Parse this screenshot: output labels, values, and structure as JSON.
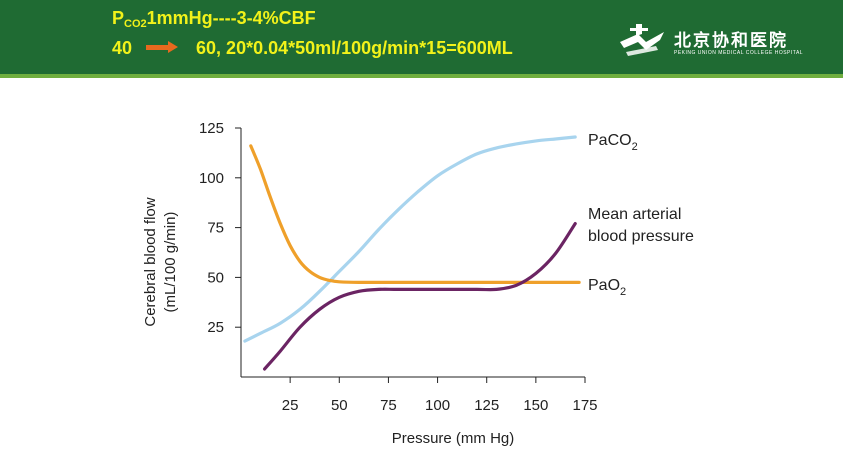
{
  "header": {
    "line1_p": "P",
    "line1_sub": "CO2",
    "line1_rest": "1mmHg----3-4%CBF",
    "line2_start": "40",
    "line2_rest": "60, 20*0.04*50ml/100g/min*15=600ML",
    "arrow_icon": "right-arrow-icon",
    "logo_cn": "北京协和医院",
    "logo_en": "PEKING UNION MEDICAL COLLEGE HOSPITAL"
  },
  "colors": {
    "header_bg": "#1f6b33",
    "header_text": "#f2f21a",
    "arrow": "#e8691e",
    "paco2": "#a8d4ee",
    "pao2": "#efa02a",
    "map": "#6b2463"
  },
  "chart_data": {
    "type": "line",
    "title": "",
    "xlabel": "Pressure (mm Hg)",
    "ylabel_line1": "Cerebral blood flow",
    "ylabel_line2": "(mL/100 g/min)",
    "xlim": [
      0,
      175
    ],
    "ylim": [
      0,
      125
    ],
    "xticks": [
      25,
      50,
      75,
      100,
      125,
      150,
      175
    ],
    "yticks": [
      25,
      50,
      75,
      100,
      125
    ],
    "grid": false,
    "series": [
      {
        "name": "PaCO2",
        "label_base": "PaCO",
        "label_sub": "2",
        "color": "#a8d4ee",
        "points": [
          [
            2,
            18
          ],
          [
            10,
            22
          ],
          [
            20,
            27
          ],
          [
            30,
            34
          ],
          [
            40,
            43
          ],
          [
            50,
            53
          ],
          [
            60,
            63
          ],
          [
            70,
            74
          ],
          [
            80,
            84
          ],
          [
            90,
            93
          ],
          [
            100,
            101
          ],
          [
            110,
            107
          ],
          [
            120,
            112
          ],
          [
            130,
            115
          ],
          [
            140,
            117
          ],
          [
            150,
            118.5
          ],
          [
            160,
            119.5
          ],
          [
            170,
            120.5
          ]
        ]
      },
      {
        "name": "PaO2",
        "label_base": "PaO",
        "label_sub": "2",
        "color": "#efa02a",
        "points": [
          [
            5,
            116
          ],
          [
            10,
            104
          ],
          [
            15,
            90
          ],
          [
            20,
            77
          ],
          [
            25,
            66
          ],
          [
            30,
            58
          ],
          [
            35,
            53
          ],
          [
            40,
            50
          ],
          [
            45,
            48.5
          ],
          [
            50,
            47.8
          ],
          [
            60,
            47.5
          ],
          [
            80,
            47.5
          ],
          [
            120,
            47.5
          ],
          [
            150,
            47.5
          ],
          [
            172,
            47.5
          ]
        ]
      },
      {
        "name": "Mean arterial blood pressure",
        "label_line1": "Mean arterial",
        "label_line2": "blood pressure",
        "color": "#6b2463",
        "points": [
          [
            12,
            4
          ],
          [
            20,
            13
          ],
          [
            30,
            25
          ],
          [
            40,
            34
          ],
          [
            50,
            40
          ],
          [
            60,
            43
          ],
          [
            70,
            44
          ],
          [
            80,
            44
          ],
          [
            100,
            44
          ],
          [
            120,
            44
          ],
          [
            130,
            44
          ],
          [
            140,
            46
          ],
          [
            150,
            52
          ],
          [
            160,
            62
          ],
          [
            170,
            77
          ]
        ]
      }
    ]
  }
}
